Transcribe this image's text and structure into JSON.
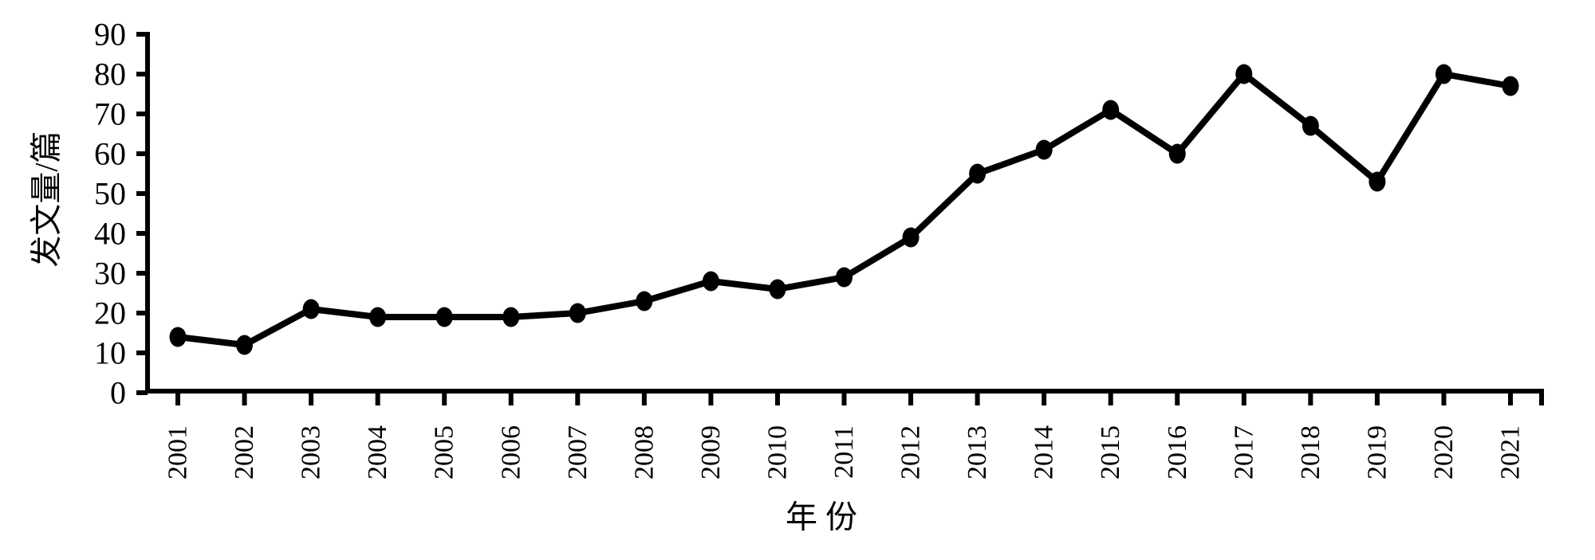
{
  "chart_data": {
    "type": "line",
    "title": "",
    "categories": [
      "2001",
      "2002",
      "2003",
      "2004",
      "2005",
      "2006",
      "2007",
      "2008",
      "2009",
      "2010",
      "2011",
      "2012",
      "2013",
      "2014",
      "2015",
      "2016",
      "2017",
      "2018",
      "2019",
      "2020",
      "2021"
    ],
    "series": [
      {
        "name": "发文量",
        "values": [
          14,
          12,
          21,
          19,
          19,
          19,
          20,
          23,
          28,
          26,
          29,
          39,
          55,
          61,
          71,
          60,
          80,
          67,
          53,
          80,
          77
        ]
      }
    ],
    "xlabel": "年 份",
    "ylabel": "发文量/篇",
    "ylim": [
      0,
      90
    ],
    "yticks": [
      0,
      10,
      20,
      30,
      40,
      50,
      60,
      70,
      80,
      90
    ],
    "grid": false,
    "legend_position": "none",
    "line_color": "#000000",
    "marker_color": "#000000",
    "axis_color": "#000000",
    "text_color": "#000000",
    "background_color": "#ffffff",
    "marker_shape": "filled-circle",
    "x_labels_rotated_degrees": -90
  }
}
